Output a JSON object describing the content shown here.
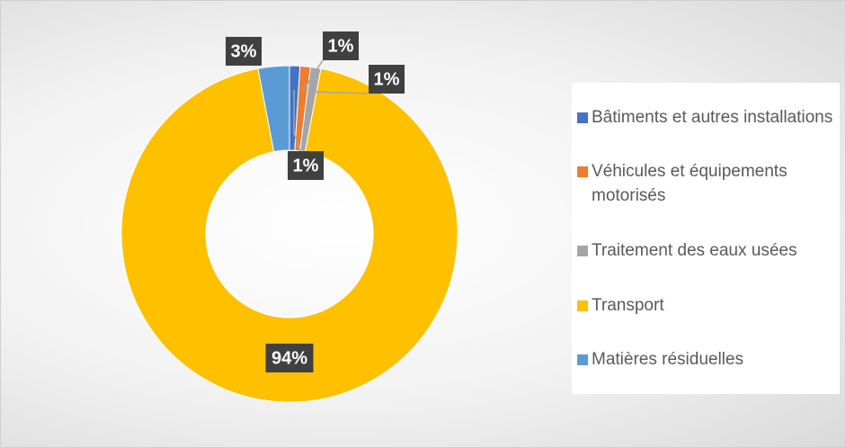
{
  "chart_data": {
    "type": "pie",
    "donut": true,
    "categories": [
      "Bâtiments et autres installations",
      "Véhicules et équipements motorisés",
      "Traitement des eaux usées",
      "Transport",
      "Matières résiduelles"
    ],
    "values": [
      1,
      1,
      1,
      94,
      3
    ],
    "value_labels": [
      "1%",
      "1%",
      "1%",
      "94%",
      "3%"
    ],
    "colors": [
      "#4472c4",
      "#ed7d31",
      "#a5a5a5",
      "#ffc000",
      "#5b9bd5"
    ],
    "legend": "right"
  }
}
